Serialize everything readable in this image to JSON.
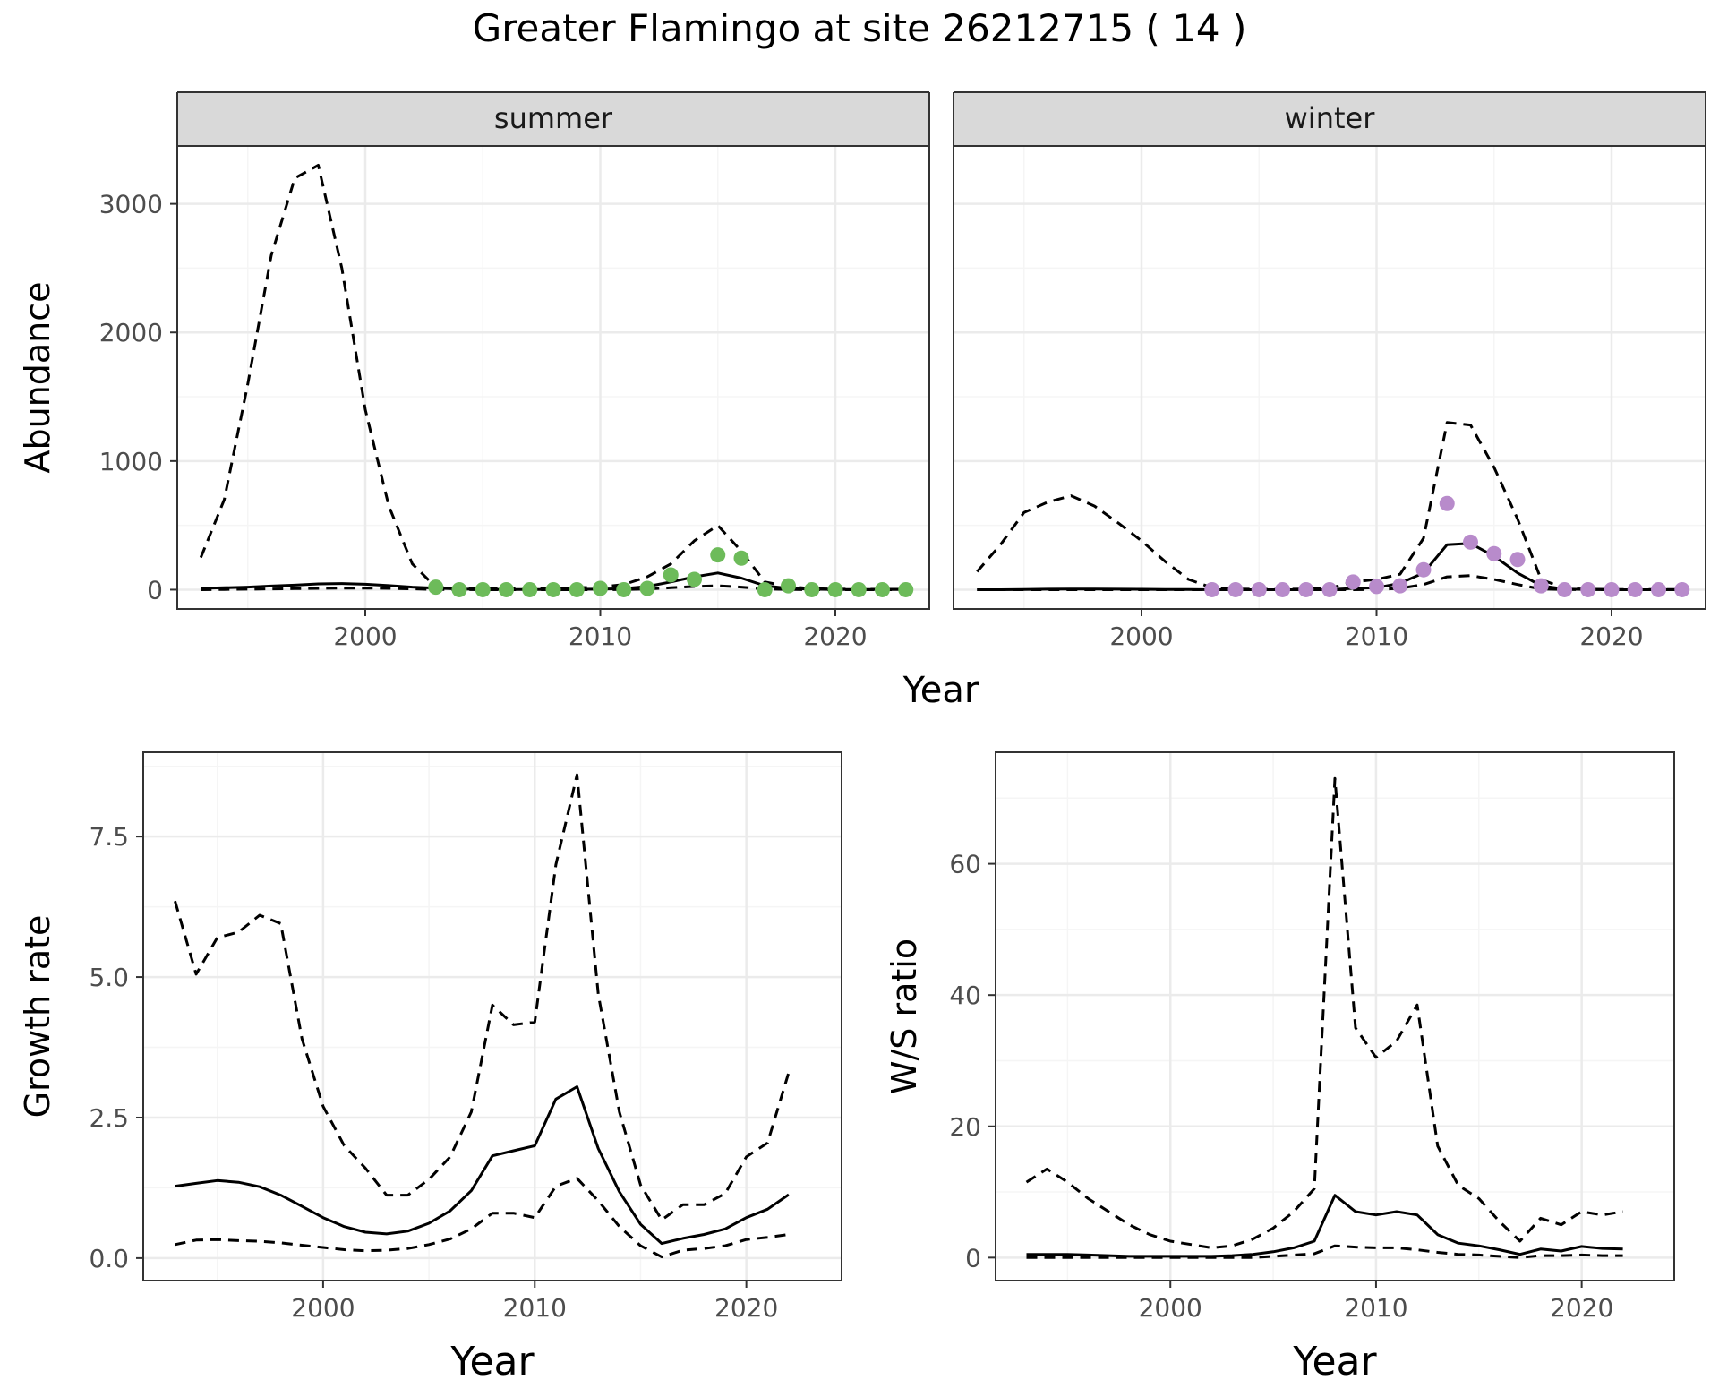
{
  "title": "Greater Flamingo at site 26212715 ( 14 )",
  "colors": {
    "summer_points": "#6dbb5a",
    "winter_points": "#b88bcb",
    "line": "#000000",
    "strip_fill": "#d9d9d9",
    "strip_border": "#333333",
    "grid_major": "#ebebeb",
    "grid_minor": "#f5f5f5",
    "tick_text": "#4d4d4d",
    "panel_border": "#333333"
  },
  "chart_data": [
    {
      "type": "line",
      "panel": "summer",
      "strip_label": "summer",
      "ylabel": "Abundance",
      "xlabel": "Year",
      "xlim": [
        1992,
        2024
      ],
      "ylim": [
        -150,
        3450
      ],
      "x_ticks": [
        2000,
        2010,
        2020
      ],
      "y_ticks": [
        0,
        1000,
        2000,
        3000
      ],
      "grid": true,
      "series": [
        {
          "style": "solid",
          "x": [
            1993,
            1994,
            1995,
            1996,
            1997,
            1998,
            1999,
            2000,
            2001,
            2002,
            2003,
            2004,
            2005,
            2006,
            2007,
            2008,
            2009,
            2010,
            2011,
            2012,
            2013,
            2014,
            2015,
            2016,
            2017,
            2018,
            2019,
            2020,
            2021,
            2022,
            2023
          ],
          "y": [
            10,
            15,
            20,
            28,
            35,
            45,
            48,
            42,
            32,
            20,
            12,
            5,
            3,
            2,
            2,
            2,
            3,
            4,
            8,
            25,
            60,
            100,
            130,
            90,
            30,
            10,
            4,
            2,
            1,
            1,
            1
          ]
        },
        {
          "style": "dashed",
          "x": [
            1993,
            1994,
            1995,
            1996,
            1997,
            1998,
            1999,
            2000,
            2001,
            2002,
            2003,
            2004,
            2005,
            2006,
            2007,
            2008,
            2009,
            2010,
            2011,
            2012,
            2013,
            2014,
            2015,
            2016,
            2017,
            2018,
            2019,
            2020,
            2021,
            2022,
            2023
          ],
          "y": [
            250,
            700,
            1600,
            2600,
            3200,
            3300,
            2500,
            1400,
            650,
            200,
            20,
            10,
            8,
            8,
            8,
            10,
            15,
            20,
            40,
            100,
            200,
            380,
            500,
            300,
            60,
            25,
            8,
            5,
            3,
            3,
            3
          ]
        },
        {
          "style": "dashed",
          "x": [
            1993,
            1994,
            1995,
            1996,
            1997,
            1998,
            1999,
            2000,
            2001,
            2002,
            2003,
            2004,
            2005,
            2006,
            2007,
            2008,
            2009,
            2010,
            2011,
            2012,
            2013,
            2014,
            2015,
            2016,
            2017,
            2018,
            2019,
            2020,
            2021,
            2022,
            2023
          ],
          "y": [
            0,
            2,
            4,
            6,
            8,
            10,
            12,
            12,
            10,
            6,
            2,
            1,
            0,
            0,
            0,
            0,
            0,
            0,
            1,
            5,
            15,
            25,
            30,
            20,
            5,
            2,
            0,
            0,
            0,
            0,
            0
          ]
        }
      ],
      "points": {
        "x": [
          2003,
          2004,
          2005,
          2006,
          2007,
          2008,
          2009,
          2010,
          2011,
          2012,
          2013,
          2014,
          2015,
          2016,
          2017,
          2018,
          2019,
          2020,
          2021,
          2022,
          2023
        ],
        "y": [
          20,
          0,
          0,
          0,
          0,
          0,
          0,
          10,
          0,
          10,
          115,
          80,
          270,
          245,
          0,
          30,
          0,
          0,
          0,
          0,
          0
        ]
      }
    },
    {
      "type": "line",
      "panel": "winter",
      "strip_label": "winter",
      "xlabel": "Year",
      "xlim": [
        1992,
        2024
      ],
      "ylim": [
        -150,
        3450
      ],
      "x_ticks": [
        2000,
        2010,
        2020
      ],
      "y_ticks": [
        0,
        1000,
        2000,
        3000
      ],
      "grid": true,
      "series": [
        {
          "style": "solid",
          "x": [
            1993,
            1994,
            1995,
            1996,
            1997,
            1998,
            1999,
            2000,
            2001,
            2002,
            2003,
            2004,
            2005,
            2006,
            2007,
            2008,
            2009,
            2010,
            2011,
            2012,
            2013,
            2014,
            2015,
            2016,
            2017,
            2018,
            2019,
            2020,
            2021,
            2022,
            2023
          ],
          "y": [
            0,
            0,
            2,
            4,
            5,
            5,
            4,
            3,
            2,
            1,
            0,
            0,
            0,
            0,
            0,
            0,
            10,
            15,
            50,
            130,
            350,
            360,
            260,
            130,
            30,
            5,
            1,
            0,
            0,
            0,
            0
          ]
        },
        {
          "style": "dashed",
          "x": [
            1993,
            1994,
            1995,
            1996,
            1997,
            1998,
            1999,
            2000,
            2001,
            2002,
            2003,
            2004,
            2005,
            2006,
            2007,
            2008,
            2009,
            2010,
            2011,
            2012,
            2013,
            2014,
            2015,
            2016,
            2017,
            2018,
            2019,
            2020,
            2021,
            2022,
            2023
          ],
          "y": [
            140,
            350,
            600,
            680,
            730,
            650,
            520,
            380,
            220,
            80,
            15,
            5,
            3,
            3,
            5,
            10,
            60,
            80,
            120,
            400,
            1300,
            1280,
            950,
            550,
            80,
            10,
            3,
            2,
            1,
            1,
            1
          ]
        },
        {
          "style": "dashed",
          "x": [
            1993,
            1994,
            1995,
            1996,
            1997,
            1998,
            1999,
            2000,
            2001,
            2002,
            2003,
            2004,
            2005,
            2006,
            2007,
            2008,
            2009,
            2010,
            2011,
            2012,
            2013,
            2014,
            2015,
            2016,
            2017,
            2018,
            2019,
            2020,
            2021,
            2022,
            2023
          ],
          "y": [
            0,
            0,
            0,
            0,
            0,
            0,
            0,
            0,
            0,
            0,
            0,
            0,
            0,
            0,
            0,
            0,
            0,
            2,
            10,
            40,
            100,
            110,
            80,
            40,
            5,
            1,
            0,
            0,
            0,
            0,
            0
          ]
        }
      ],
      "points": {
        "x": [
          2003,
          2004,
          2005,
          2006,
          2007,
          2008,
          2009,
          2010,
          2011,
          2012,
          2013,
          2014,
          2015,
          2016,
          2017,
          2018,
          2019,
          2020,
          2021,
          2022,
          2023
        ],
        "y": [
          0,
          0,
          0,
          0,
          0,
          0,
          60,
          25,
          30,
          155,
          670,
          370,
          280,
          235,
          30,
          0,
          0,
          0,
          0,
          0,
          0
        ]
      }
    },
    {
      "type": "line",
      "panel": "growth",
      "ylabel": "Growth rate",
      "xlabel": "Year",
      "xlim": [
        1991.5,
        2024.5
      ],
      "ylim": [
        -0.4,
        9.0
      ],
      "x_ticks": [
        2000,
        2010,
        2020
      ],
      "y_ticks": [
        0.0,
        2.5,
        5.0,
        7.5
      ],
      "y_tick_labels": [
        "0.0",
        "2.5",
        "5.0",
        "7.5"
      ],
      "grid": true,
      "series": [
        {
          "style": "solid",
          "x": [
            1993,
            1994,
            1995,
            1996,
            1997,
            1998,
            1999,
            2000,
            2001,
            2002,
            2003,
            2004,
            2005,
            2006,
            2007,
            2008,
            2009,
            2010,
            2011,
            2012,
            2013,
            2014,
            2015,
            2016,
            2017,
            2018,
            2019,
            2020,
            2021,
            2022
          ],
          "y": [
            1.28,
            1.33,
            1.38,
            1.35,
            1.27,
            1.12,
            0.92,
            0.72,
            0.56,
            0.46,
            0.43,
            0.48,
            0.62,
            0.84,
            1.2,
            1.82,
            1.91,
            2.0,
            2.83,
            3.05,
            1.95,
            1.18,
            0.6,
            0.26,
            0.35,
            0.42,
            0.52,
            0.72,
            0.87,
            1.13
          ]
        },
        {
          "style": "dashed",
          "x": [
            1993,
            1994,
            1995,
            1996,
            1997,
            1998,
            1999,
            2000,
            2001,
            2002,
            2003,
            2004,
            2005,
            2006,
            2007,
            2008,
            2009,
            2010,
            2011,
            2012,
            2013,
            2014,
            2015,
            2016,
            2017,
            2018,
            2019,
            2020,
            2021,
            2022
          ],
          "y": [
            6.35,
            5.05,
            5.7,
            5.8,
            6.1,
            5.95,
            3.9,
            2.7,
            2.0,
            1.6,
            1.12,
            1.12,
            1.4,
            1.8,
            2.6,
            4.5,
            4.15,
            4.2,
            7.0,
            8.6,
            4.7,
            2.6,
            1.3,
            0.68,
            0.95,
            0.95,
            1.15,
            1.8,
            2.05,
            3.3
          ]
        },
        {
          "style": "dashed",
          "x": [
            1993,
            1994,
            1995,
            1996,
            1997,
            1998,
            1999,
            2000,
            2001,
            2002,
            2003,
            2004,
            2005,
            2006,
            2007,
            2008,
            2009,
            2010,
            2011,
            2012,
            2013,
            2014,
            2015,
            2016,
            2017,
            2018,
            2019,
            2020,
            2021,
            2022
          ],
          "y": [
            0.24,
            0.32,
            0.33,
            0.31,
            0.3,
            0.27,
            0.23,
            0.19,
            0.15,
            0.13,
            0.14,
            0.17,
            0.24,
            0.34,
            0.52,
            0.8,
            0.8,
            0.72,
            1.28,
            1.42,
            1.02,
            0.56,
            0.22,
            0.02,
            0.14,
            0.17,
            0.22,
            0.33,
            0.37,
            0.42
          ]
        }
      ]
    },
    {
      "type": "line",
      "panel": "ratio",
      "ylabel": "W/S ratio",
      "xlabel": "Year",
      "xlim": [
        1991.5,
        2024.5
      ],
      "ylim": [
        -3.5,
        77
      ],
      "x_ticks": [
        2000,
        2010,
        2020
      ],
      "y_ticks": [
        0,
        20,
        40,
        60
      ],
      "grid": true,
      "series": [
        {
          "style": "solid",
          "x": [
            1993,
            1994,
            1995,
            1996,
            1997,
            1998,
            1999,
            2000,
            2001,
            2002,
            2003,
            2004,
            2005,
            2006,
            2007,
            2008,
            2009,
            2010,
            2011,
            2012,
            2013,
            2014,
            2015,
            2016,
            2017,
            2018,
            2019,
            2020,
            2021,
            2022
          ],
          "y": [
            0.5,
            0.5,
            0.5,
            0.4,
            0.3,
            0.2,
            0.2,
            0.2,
            0.2,
            0.2,
            0.3,
            0.5,
            0.9,
            1.5,
            2.5,
            9.5,
            7.0,
            6.5,
            7.0,
            6.5,
            3.5,
            2.2,
            1.8,
            1.2,
            0.5,
            1.3,
            1.0,
            1.7,
            1.4,
            1.3
          ]
        },
        {
          "style": "dashed",
          "x": [
            1993,
            1994,
            1995,
            1996,
            1997,
            1998,
            1999,
            2000,
            2001,
            2002,
            2003,
            2004,
            2005,
            2006,
            2007,
            2008,
            2009,
            2010,
            2011,
            2012,
            2013,
            2014,
            2015,
            2016,
            2017,
            2018,
            2019,
            2020,
            2021,
            2022
          ],
          "y": [
            11.5,
            13.5,
            11.5,
            9.0,
            7.0,
            5.0,
            3.5,
            2.5,
            2.0,
            1.5,
            1.8,
            2.8,
            4.5,
            7.0,
            10.5,
            73.0,
            35.0,
            30.5,
            33.0,
            38.5,
            17.0,
            11.0,
            9.0,
            5.5,
            2.5,
            6.0,
            5.0,
            7.0,
            6.5,
            7.0
          ]
        },
        {
          "style": "dashed",
          "x": [
            1993,
            1994,
            1995,
            1996,
            1997,
            1998,
            1999,
            2000,
            2001,
            2002,
            2003,
            2004,
            2005,
            2006,
            2007,
            2008,
            2009,
            2010,
            2011,
            2012,
            2013,
            2014,
            2015,
            2016,
            2017,
            2018,
            2019,
            2020,
            2021,
            2022
          ],
          "y": [
            0,
            0,
            0,
            0,
            0,
            0,
            0,
            0,
            0,
            0,
            0,
            0,
            0.2,
            0.4,
            0.6,
            1.8,
            1.6,
            1.5,
            1.5,
            1.2,
            0.8,
            0.5,
            0.4,
            0.2,
            0,
            0.3,
            0.3,
            0.4,
            0.3,
            0.3
          ]
        }
      ]
    }
  ]
}
